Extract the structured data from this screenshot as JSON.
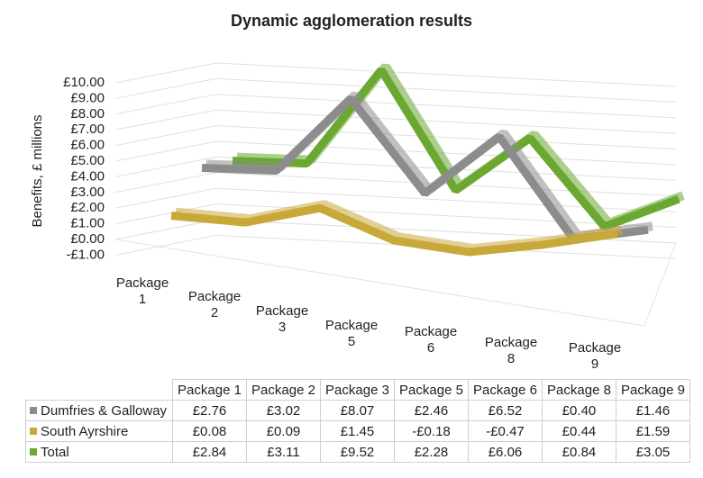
{
  "chart_data": {
    "type": "line",
    "title": "Dynamic agglomeration results",
    "y_label": "Benefits, £ millions",
    "categories": [
      "Package 1",
      "Package 2",
      "Package 3",
      "Package 5",
      "Package 6",
      "Package 8",
      "Package 9"
    ],
    "series": [
      {
        "name": "Dumfries & Galloway",
        "color": "#8c8c8c",
        "values": [
          2.76,
          3.02,
          8.07,
          2.46,
          6.52,
          0.4,
          1.46
        ],
        "value_labels": [
          "£2.76",
          "£3.02",
          "£8.07",
          "£2.46",
          "£6.52",
          "£0.40",
          "£1.46"
        ]
      },
      {
        "name": "South Ayrshire",
        "color": "#c9a83a",
        "values": [
          0.08,
          0.09,
          1.45,
          -0.18,
          -0.47,
          0.44,
          1.59
        ],
        "value_labels": [
          "£0.08",
          "£0.09",
          "£1.45",
          "-£0.18",
          "-£0.47",
          "£0.44",
          "£1.59"
        ]
      },
      {
        "name": "Total",
        "color": "#6aa832",
        "values": [
          2.84,
          3.11,
          9.52,
          2.28,
          6.06,
          0.84,
          3.05
        ],
        "value_labels": [
          "£2.84",
          "£3.11",
          "£9.52",
          "£2.28",
          "£6.06",
          "£0.84",
          "£3.05"
        ]
      }
    ],
    "ylim": [
      -1,
      10
    ],
    "yticks": [
      {
        "value": -1,
        "label": "-£1.00"
      },
      {
        "value": 0,
        "label": "£0.00"
      },
      {
        "value": 1,
        "label": "£1.00"
      },
      {
        "value": 2,
        "label": "£2.00"
      },
      {
        "value": 3,
        "label": "£3.00"
      },
      {
        "value": 4,
        "label": "£4.00"
      },
      {
        "value": 5,
        "label": "£5.00"
      },
      {
        "value": 6,
        "label": "£6.00"
      },
      {
        "value": 7,
        "label": "£7.00"
      },
      {
        "value": 8,
        "label": "£8.00"
      },
      {
        "value": 9,
        "label": "£9.00"
      },
      {
        "value": 10,
        "label": "£10.00"
      }
    ],
    "grid": true
  }
}
